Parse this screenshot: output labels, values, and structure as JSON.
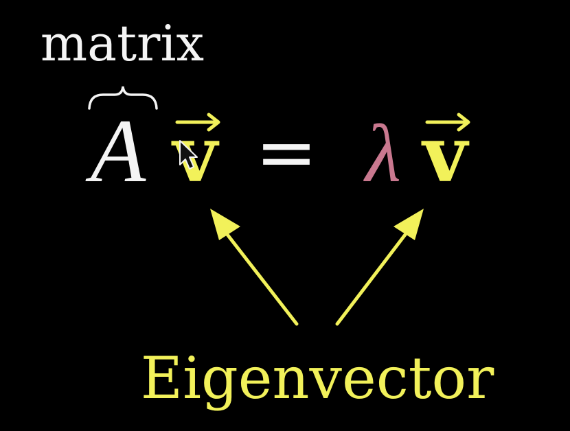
{
  "annotation": {
    "top_label": "matrix",
    "bottom_label": "Eigenvector"
  },
  "equation": {
    "matrix_symbol": "A",
    "vector_symbol": "v",
    "equals": "=",
    "scalar_symbol": "λ"
  },
  "colors": {
    "background": "#000000",
    "white": "#f4f4f4",
    "yellow": "#f2f15a",
    "lambda_pink": "#c9788f"
  },
  "cursor": {
    "icon": "arrow-cursor-icon"
  }
}
